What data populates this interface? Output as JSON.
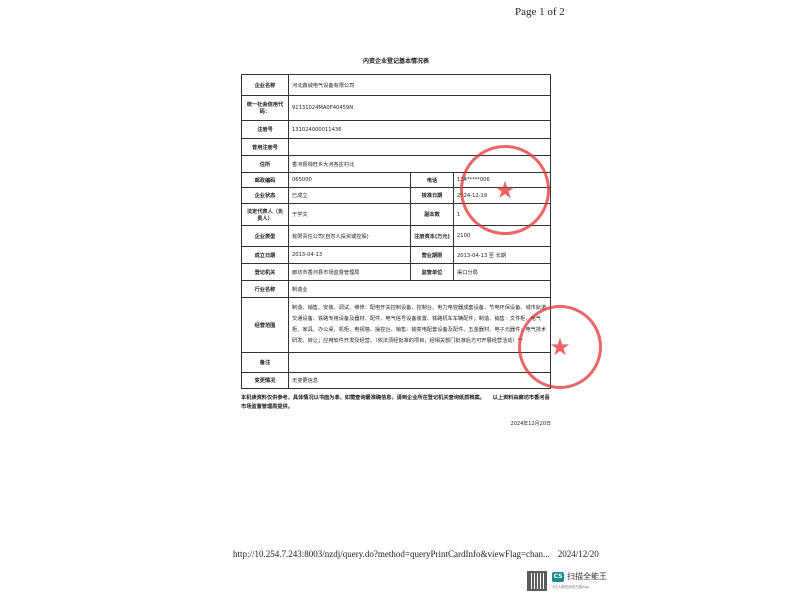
{
  "header": {
    "page_number": "Page 1 of 2"
  },
  "title": "内资企业登记基本情况表",
  "rows": {
    "name": {
      "label": "企业名称",
      "value": "河北鑫诚电气设备有限公司"
    },
    "credit_code": {
      "label": "统一社会信用代码：",
      "value": "91131024MA0F40459N"
    },
    "reg_no": {
      "label": "注册号",
      "value": "131024000011436"
    },
    "old_reg_no": {
      "label": "曾用注册号",
      "value": ""
    },
    "address": {
      "label": "住所",
      "value": "香河县钱旺乡大河各庄村北"
    },
    "postcode": {
      "label": "邮政编码",
      "value": "065000",
      "label2": "电话",
      "value2": "134*****006"
    },
    "status": {
      "label": "企业状态",
      "value": "已成立",
      "label2": "核准日期",
      "value2": "2024-12-19"
    },
    "legal_rep": {
      "label": "法定代表人（负责人）",
      "value": "于学文",
      "label2": "副本数",
      "value2": "1"
    },
    "type": {
      "label": "企业类型",
      "value": "有限责任公司(自然人投资或控股)",
      "label2": "注册资本(万元)",
      "value2": "2100"
    },
    "founded": {
      "label": "成立日期",
      "value": "2013-04-13",
      "label2": "营业期限",
      "value2": "2013-04-13 至 长期"
    },
    "authority": {
      "label": "登记机关",
      "value": "廊坊市香河县市场监督管理局",
      "label2": "监管单位",
      "value2": "渠口分局"
    },
    "industry": {
      "label": "行业名称",
      "value": "制造业"
    },
    "scope": {
      "label": "经营范围",
      "value": "制造、销售、安装、调试、维修：配电开关控制设备、控制台、电力电容器成套设备、节电环保设备、城市轨道交通设备、铁路专用设备及器材、配件、电气信号设备装置、铁路机车车辆配件；制造、销售：文件柜、电气柜、家具、办公桌、机柜、电视墙、操控台、销售：输变电配套设备及配件、五金器材、电子元器件；电气技术研发、转让；应用软件开发及经营。（依法须经批准的项目，经相关部门批准后方可开展经营活动）**"
    },
    "remarks": {
      "label": "备注",
      "value": ""
    },
    "changes": {
      "label": "变更情况",
      "value": "无变更信息"
    }
  },
  "footer_note": "本机读资料仅供参考，具体情况以书面为准，如需查询最准确信息，请到企业所在登记机关查询纸质档案。　　以上资料由廊坊市香河县市场监督管理局提供。",
  "footer_date": "2024年12月20日",
  "stamp_text": "香河县行政审批局 专用章",
  "url": "http://10.254.7.243:8003/nzdj/query.do?method=queryPrintCardInfo&viewFlag=chan...",
  "print_date": "2024/12/20",
  "scanner": {
    "logo": "CS",
    "name": "扫描全能王",
    "tagline": "3亿人都在用的扫描App"
  },
  "colors": {
    "stamp": "#e33333"
  }
}
